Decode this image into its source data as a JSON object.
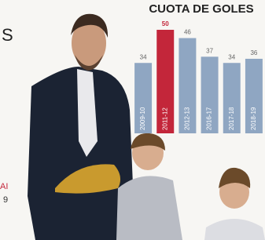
{
  "chart_data": {
    "type": "bar",
    "title": "CUOTA DE GOLES",
    "categories": [
      "2009-10",
      "2011-12",
      "2012-13",
      "2016-17",
      "2017-18",
      "2018-19"
    ],
    "values": [
      34,
      50,
      46,
      37,
      34,
      36
    ],
    "colors": [
      "#8fa6c2",
      "#c3263a",
      "#8fa6c2",
      "#8fa6c2",
      "#8fa6c2",
      "#8fa6c2"
    ]
  },
  "fragments": {
    "top_left": "S",
    "lower_left": "AI",
    "bottom_left": "9"
  }
}
